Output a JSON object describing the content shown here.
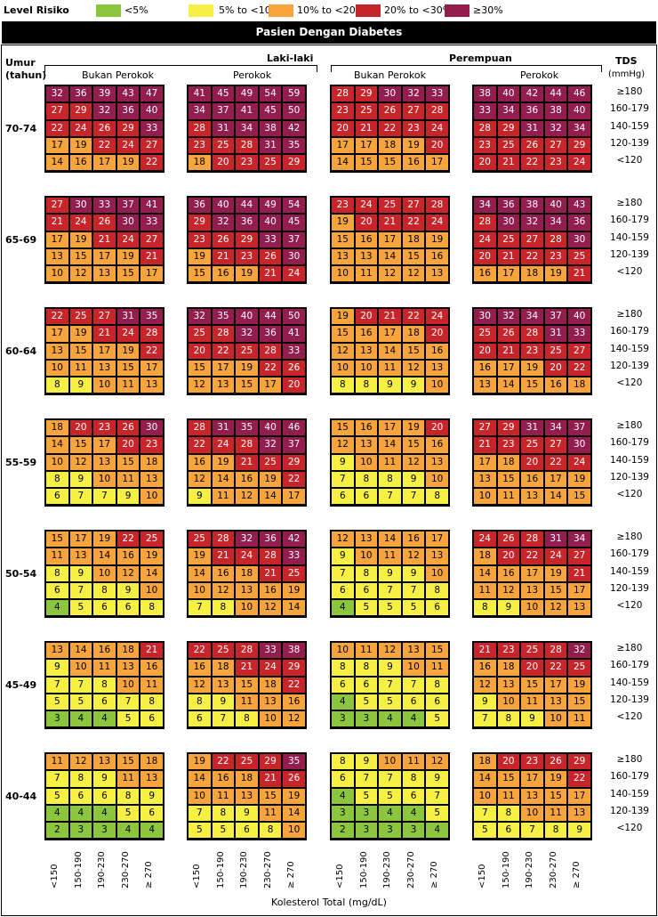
{
  "legend": {
    "title": "Level Risiko",
    "items": [
      {
        "label": "<5%",
        "color": "#8cc63f"
      },
      {
        "label": "5% to <10%",
        "color": "#f7f044"
      },
      {
        "label": "10% to <20%",
        "color": "#f7a43c"
      },
      {
        "label": "20% to <30%",
        "color": "#c8252a"
      },
      {
        "label": "≥30%",
        "color": "#931d4d"
      }
    ]
  },
  "banner": "Pasien Dengan Diabetes",
  "header": {
    "age_label_1": "Umur",
    "age_label_2": "(tahun)",
    "male": "Laki-laki",
    "female": "Perempuan",
    "non_smoker": "Bukan Perokok",
    "smoker": "Perokok",
    "tds_label": "TDS",
    "tds_unit": "(mmHg)"
  },
  "chart_data": {
    "type": "heatmap",
    "title": "Pasien Dengan Diabetes",
    "xlabel": "Kolesterol Total (mg/dL)",
    "ylabel": "TDS (mmHg)",
    "cholesterol_categories": [
      "<150",
      "150-190",
      "190-230",
      "230-270",
      "≥ 270"
    ],
    "sbp_categories": [
      "≥180",
      "160-179",
      "140-159",
      "120-139",
      "<120"
    ],
    "groups": [
      "Laki-laki Bukan Perokok",
      "Laki-laki Perokok",
      "Perempuan Bukan Perokok",
      "Perempuan Perokok"
    ],
    "age_bands": [
      {
        "age": "70-74",
        "grids": [
          [
            [
              32,
              36,
              39,
              43,
              47
            ],
            [
              27,
              29,
              32,
              36,
              40
            ],
            [
              22,
              24,
              26,
              29,
              33
            ],
            [
              17,
              19,
              22,
              24,
              27
            ],
            [
              14,
              16,
              17,
              19,
              22
            ]
          ],
          [
            [
              41,
              45,
              49,
              54,
              59
            ],
            [
              34,
              37,
              41,
              45,
              50
            ],
            [
              28,
              31,
              34,
              38,
              42
            ],
            [
              23,
              25,
              28,
              31,
              35
            ],
            [
              18,
              20,
              23,
              25,
              29
            ]
          ],
          [
            [
              28,
              29,
              30,
              32,
              33
            ],
            [
              23,
              25,
              26,
              27,
              28
            ],
            [
              20,
              21,
              22,
              23,
              24
            ],
            [
              17,
              17,
              18,
              19,
              20
            ],
            [
              14,
              15,
              15,
              16,
              17
            ]
          ],
          [
            [
              38,
              40,
              42,
              44,
              46
            ],
            [
              33,
              34,
              36,
              38,
              40
            ],
            [
              28,
              29,
              31,
              32,
              34
            ],
            [
              23,
              25,
              26,
              27,
              29
            ],
            [
              20,
              21,
              22,
              23,
              24
            ]
          ]
        ]
      },
      {
        "age": "65-69",
        "grids": [
          [
            [
              27,
              30,
              33,
              37,
              41
            ],
            [
              21,
              24,
              26,
              30,
              33
            ],
            [
              17,
              19,
              21,
              24,
              27
            ],
            [
              13,
              15,
              17,
              19,
              21
            ],
            [
              10,
              12,
              13,
              15,
              17
            ]
          ],
          [
            [
              36,
              40,
              44,
              49,
              54
            ],
            [
              29,
              32,
              36,
              40,
              45
            ],
            [
              23,
              26,
              29,
              33,
              37
            ],
            [
              19,
              21,
              23,
              26,
              30
            ],
            [
              15,
              16,
              19,
              21,
              24
            ]
          ],
          [
            [
              23,
              24,
              25,
              27,
              28
            ],
            [
              19,
              20,
              21,
              22,
              24
            ],
            [
              15,
              16,
              17,
              18,
              19
            ],
            [
              13,
              13,
              14,
              15,
              16
            ],
            [
              10,
              11,
              12,
              12,
              13
            ]
          ],
          [
            [
              34,
              36,
              38,
              40,
              43
            ],
            [
              28,
              30,
              32,
              34,
              36
            ],
            [
              24,
              25,
              27,
              28,
              30
            ],
            [
              20,
              21,
              22,
              23,
              25
            ],
            [
              16,
              17,
              18,
              19,
              21
            ]
          ]
        ]
      },
      {
        "age": "60-64",
        "grids": [
          [
            [
              22,
              25,
              27,
              31,
              35
            ],
            [
              17,
              19,
              21,
              24,
              28
            ],
            [
              13,
              15,
              17,
              19,
              22
            ],
            [
              10,
              11,
              13,
              15,
              17
            ],
            [
              8,
              9,
              10,
              11,
              13
            ]
          ],
          [
            [
              32,
              35,
              40,
              44,
              50
            ],
            [
              25,
              28,
              32,
              36,
              41
            ],
            [
              20,
              22,
              25,
              28,
              33
            ],
            [
              15,
              17,
              19,
              22,
              26
            ],
            [
              12,
              13,
              15,
              17,
              20
            ]
          ],
          [
            [
              19,
              20,
              21,
              22,
              24
            ],
            [
              15,
              16,
              17,
              18,
              20
            ],
            [
              12,
              13,
              14,
              15,
              16
            ],
            [
              10,
              10,
              11,
              12,
              13
            ],
            [
              8,
              8,
              9,
              9,
              10
            ]
          ],
          [
            [
              30,
              32,
              34,
              37,
              40
            ],
            [
              25,
              26,
              28,
              31,
              33
            ],
            [
              20,
              21,
              23,
              25,
              27
            ],
            [
              16,
              17,
              19,
              20,
              22
            ],
            [
              13,
              14,
              15,
              16,
              18
            ]
          ]
        ]
      },
      {
        "age": "55-59",
        "grids": [
          [
            [
              18,
              20,
              23,
              26,
              30
            ],
            [
              14,
              15,
              17,
              20,
              23
            ],
            [
              10,
              12,
              13,
              15,
              18
            ],
            [
              8,
              9,
              10,
              11,
              13
            ],
            [
              6,
              7,
              7,
              9,
              10
            ]
          ],
          [
            [
              28,
              31,
              35,
              40,
              46
            ],
            [
              22,
              24,
              28,
              32,
              37
            ],
            [
              16,
              19,
              21,
              25,
              29
            ],
            [
              12,
              14,
              16,
              19,
              22
            ],
            [
              9,
              11,
              12,
              14,
              17
            ]
          ],
          [
            [
              15,
              16,
              17,
              19,
              20
            ],
            [
              12,
              13,
              14,
              15,
              16
            ],
            [
              9,
              10,
              11,
              12,
              13
            ],
            [
              7,
              8,
              8,
              9,
              10
            ],
            [
              6,
              6,
              7,
              7,
              8
            ]
          ],
          [
            [
              27,
              29,
              31,
              34,
              37
            ],
            [
              21,
              23,
              25,
              27,
              30
            ],
            [
              17,
              18,
              20,
              22,
              24
            ],
            [
              13,
              15,
              16,
              17,
              19
            ],
            [
              10,
              11,
              13,
              14,
              15
            ]
          ]
        ]
      },
      {
        "age": "50-54",
        "grids": [
          [
            [
              15,
              17,
              19,
              22,
              25
            ],
            [
              11,
              13,
              14,
              16,
              19
            ],
            [
              8,
              9,
              10,
              12,
              14
            ],
            [
              6,
              7,
              8,
              9,
              10
            ],
            [
              4,
              5,
              6,
              6,
              8
            ]
          ],
          [
            [
              25,
              28,
              32,
              36,
              42
            ],
            [
              19,
              21,
              24,
              28,
              33
            ],
            [
              14,
              16,
              18,
              21,
              25
            ],
            [
              10,
              12,
              13,
              16,
              19
            ],
            [
              7,
              8,
              10,
              12,
              14
            ]
          ],
          [
            [
              12,
              13,
              14,
              16,
              17
            ],
            [
              9,
              10,
              11,
              12,
              13
            ],
            [
              7,
              8,
              9,
              9,
              10
            ],
            [
              6,
              6,
              7,
              7,
              8
            ],
            [
              4,
              5,
              5,
              5,
              6
            ]
          ],
          [
            [
              24,
              26,
              28,
              31,
              34
            ],
            [
              18,
              20,
              22,
              24,
              27
            ],
            [
              14,
              16,
              17,
              19,
              21
            ],
            [
              11,
              12,
              13,
              15,
              17
            ],
            [
              8,
              9,
              10,
              12,
              13
            ]
          ]
        ]
      },
      {
        "age": "45-49",
        "grids": [
          [
            [
              13,
              14,
              16,
              18,
              21
            ],
            [
              9,
              10,
              11,
              13,
              16
            ],
            [
              7,
              7,
              8,
              10,
              11
            ],
            [
              5,
              5,
              6,
              7,
              8
            ],
            [
              3,
              4,
              4,
              5,
              6
            ]
          ],
          [
            [
              22,
              25,
              28,
              33,
              38
            ],
            [
              16,
              18,
              21,
              24,
              29
            ],
            [
              12,
              13,
              15,
              18,
              22
            ],
            [
              8,
              9,
              11,
              13,
              16
            ],
            [
              6,
              7,
              8,
              10,
              12
            ]
          ],
          [
            [
              10,
              11,
              12,
              13,
              15
            ],
            [
              8,
              8,
              9,
              10,
              11
            ],
            [
              6,
              6,
              7,
              7,
              8
            ],
            [
              4,
              5,
              5,
              6,
              6
            ],
            [
              3,
              3,
              4,
              4,
              5
            ]
          ],
          [
            [
              21,
              23,
              25,
              28,
              32
            ],
            [
              16,
              18,
              20,
              22,
              25
            ],
            [
              12,
              13,
              15,
              17,
              19
            ],
            [
              9,
              10,
              11,
              13,
              15
            ],
            [
              7,
              8,
              9,
              10,
              11
            ]
          ]
        ]
      },
      {
        "age": "40-44",
        "grids": [
          [
            [
              11,
              12,
              13,
              15,
              18
            ],
            [
              7,
              8,
              9,
              11,
              13
            ],
            [
              5,
              6,
              6,
              8,
              9
            ],
            [
              4,
              4,
              4,
              5,
              6
            ],
            [
              2,
              3,
              3,
              4,
              4
            ]
          ],
          [
            [
              19,
              22,
              25,
              29,
              35
            ],
            [
              14,
              16,
              18,
              21,
              26
            ],
            [
              10,
              11,
              13,
              15,
              19
            ],
            [
              7,
              8,
              9,
              11,
              14
            ],
            [
              5,
              5,
              6,
              8,
              10
            ]
          ],
          [
            [
              8,
              9,
              10,
              11,
              12
            ],
            [
              6,
              7,
              7,
              8,
              9
            ],
            [
              4,
              5,
              5,
              6,
              7
            ],
            [
              3,
              3,
              4,
              4,
              5
            ],
            [
              2,
              3,
              3,
              3,
              4
            ]
          ],
          [
            [
              18,
              20,
              23,
              26,
              29
            ],
            [
              14,
              15,
              17,
              19,
              22
            ],
            [
              10,
              11,
              13,
              15,
              17
            ],
            [
              7,
              8,
              10,
              11,
              13
            ],
            [
              5,
              6,
              7,
              8,
              9
            ]
          ]
        ]
      }
    ]
  }
}
